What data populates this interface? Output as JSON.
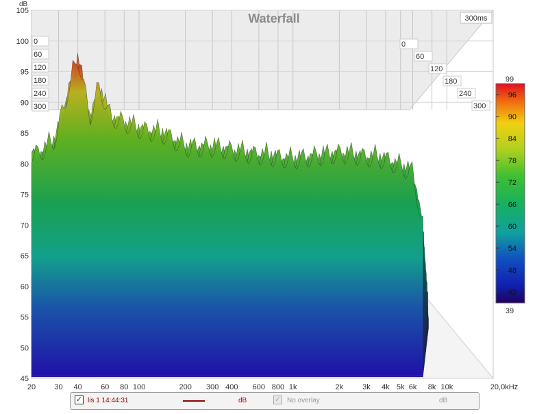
{
  "chart_data": {
    "type": "waterfall",
    "title": "Waterfall",
    "time_range_label": "300ms",
    "y_unit": "dB",
    "x_unit": "kHz",
    "y_ticks": [
      "105",
      "100",
      "95",
      "90",
      "85",
      "80",
      "75",
      "70",
      "65",
      "60",
      "55",
      "50",
      "45"
    ],
    "ylim": [
      45,
      105
    ],
    "x_ticks": [
      {
        "f": 20,
        "label": "20"
      },
      {
        "f": 30,
        "label": "30"
      },
      {
        "f": 40,
        "label": "40"
      },
      {
        "f": 60,
        "label": "60"
      },
      {
        "f": 80,
        "label": "80"
      },
      {
        "f": 100,
        "label": "100"
      },
      {
        "f": 200,
        "label": "200"
      },
      {
        "f": 300,
        "label": "300"
      },
      {
        "f": 400,
        "label": "400"
      },
      {
        "f": 600,
        "label": "600"
      },
      {
        "f": 800,
        "label": "800"
      },
      {
        "f": 1000,
        "label": "1k"
      },
      {
        "f": 2000,
        "label": "2k"
      },
      {
        "f": 3000,
        "label": "3k"
      },
      {
        "f": 4000,
        "label": "4k"
      },
      {
        "f": 5000,
        "label": "5k"
      },
      {
        "f": 6000,
        "label": "6k"
      },
      {
        "f": 8000,
        "label": "8k"
      },
      {
        "f": 10000,
        "label": "10k"
      },
      {
        "f": 20000,
        "label": "20,0kHz"
      }
    ],
    "xlim": [
      20,
      20000
    ],
    "x_scale": "log",
    "time_ticks_ms": [
      "0",
      "60",
      "120",
      "180",
      "240",
      "300"
    ],
    "colorbar": {
      "min_label": "39",
      "max_label": "99",
      "ticks": [
        "96",
        "90",
        "84",
        "78",
        "72",
        "66",
        "60",
        "54",
        "48",
        "42"
      ]
    },
    "front_slice_peaks": [
      {
        "f": 22,
        "db": 84
      },
      {
        "f": 25,
        "db": 85
      },
      {
        "f": 28,
        "db": 86
      },
      {
        "f": 40,
        "db": 100
      },
      {
        "f": 48,
        "db": 90
      },
      {
        "f": 55,
        "db": 95
      },
      {
        "f": 65,
        "db": 90
      },
      {
        "f": 80,
        "db": 89
      },
      {
        "f": 100,
        "db": 88
      },
      {
        "f": 150,
        "db": 87
      },
      {
        "f": 200,
        "db": 85
      },
      {
        "f": 300,
        "db": 85
      },
      {
        "f": 500,
        "db": 84
      },
      {
        "f": 1000,
        "db": 83
      },
      {
        "f": 2000,
        "db": 84
      },
      {
        "f": 4000,
        "db": 83
      },
      {
        "f": 6000,
        "db": 81
      },
      {
        "f": 7000,
        "db": 72
      }
    ]
  },
  "legend": {
    "series_label": "lis 1 14:44:31",
    "series_unit": "dB",
    "series_color": "#8b0000",
    "overlay_label": "No overlay",
    "overlay_unit": "dB"
  }
}
